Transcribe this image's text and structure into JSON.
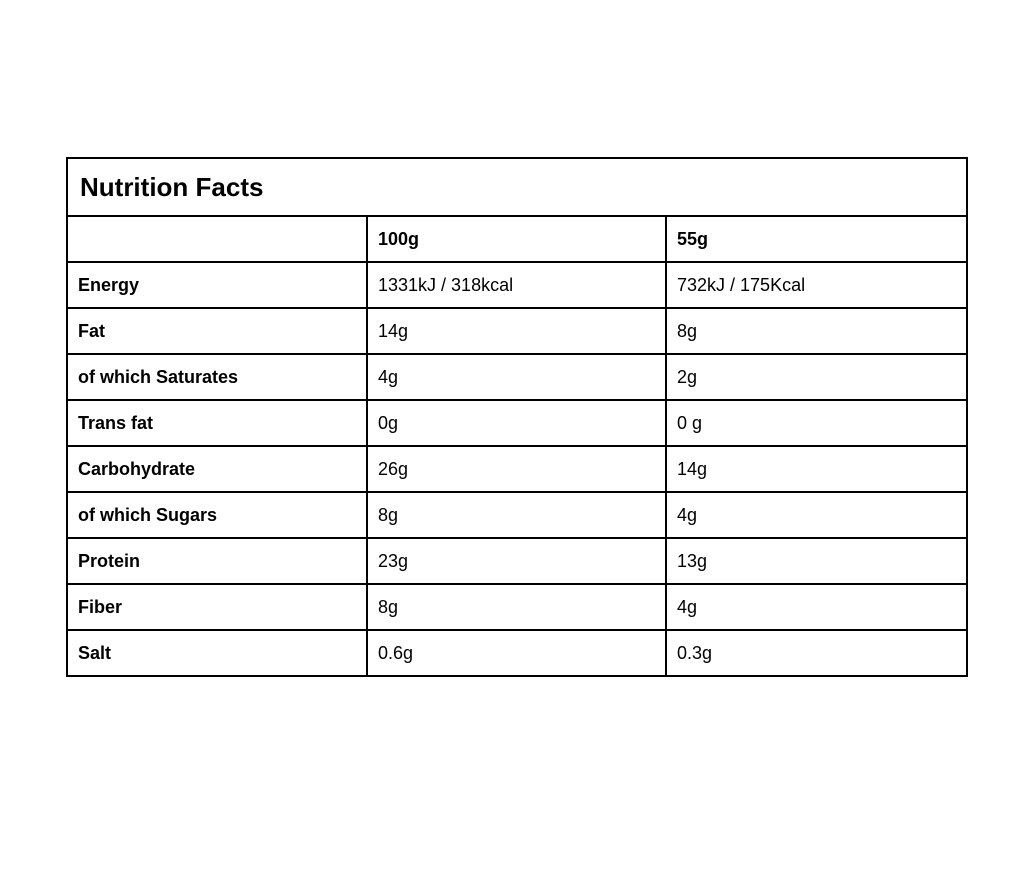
{
  "table": {
    "title": "Nutrition Facts",
    "columns": {
      "label": "",
      "per100g": "100g",
      "per55g": "55g"
    },
    "rows": [
      {
        "label": "Energy",
        "per100g": "1331kJ / 318kcal",
        "per55g": "732kJ / 175Kcal"
      },
      {
        "label": "Fat",
        "per100g": "14g",
        "per55g": "8g"
      },
      {
        "label": "of which Saturates",
        "per100g": "4g",
        "per55g": "2g"
      },
      {
        "label": "Trans fat",
        "per100g": "0g",
        "per55g": "0 g"
      },
      {
        "label": "Carbohydrate",
        "per100g": "26g",
        "per55g": "14g"
      },
      {
        "label": "of which Sugars",
        "per100g": "8g",
        "per55g": "4g"
      },
      {
        "label": "Protein",
        "per100g": "23g",
        "per55g": "13g"
      },
      {
        "label": "Fiber",
        "per100g": "8g",
        "per55g": "4g"
      },
      {
        "label": "Salt",
        "per100g": "0.6g",
        "per55g": "0.3g"
      }
    ]
  }
}
